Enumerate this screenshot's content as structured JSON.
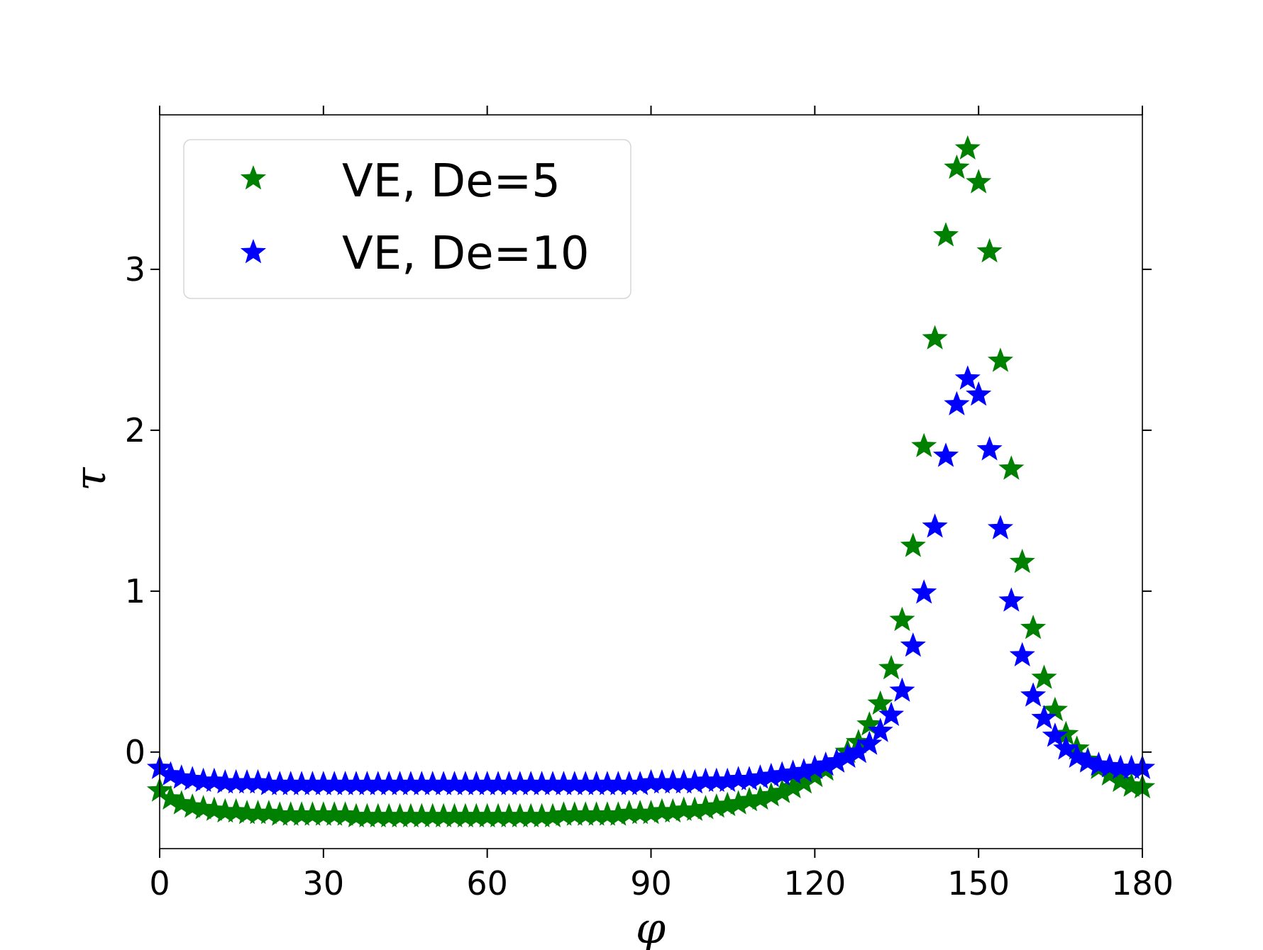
{
  "chart_data": {
    "type": "scatter",
    "title": "",
    "xlabel": "φ",
    "ylabel": "τ",
    "xlim": [
      0,
      180
    ],
    "ylim": [
      -0.6,
      3.96
    ],
    "xticks": [
      0,
      30,
      60,
      90,
      120,
      150,
      180
    ],
    "xtick_labels": [
      "0",
      "30",
      "60",
      "90",
      "120",
      "150",
      "180"
    ],
    "yticks": [
      0,
      1,
      2,
      3
    ],
    "ytick_labels": [
      "0",
      "1",
      "2",
      "3"
    ],
    "grid": false,
    "legend_position": "top-left",
    "series": [
      {
        "name": "VE, De=5",
        "color": "#008000",
        "marker": "star",
        "x": [
          0,
          2,
          4,
          6,
          8,
          10,
          12,
          14,
          16,
          18,
          20,
          22,
          24,
          26,
          28,
          30,
          32,
          34,
          36,
          38,
          40,
          42,
          44,
          46,
          48,
          50,
          52,
          54,
          56,
          58,
          60,
          62,
          64,
          66,
          68,
          70,
          72,
          74,
          76,
          78,
          80,
          82,
          84,
          86,
          88,
          90,
          92,
          94,
          96,
          98,
          100,
          102,
          104,
          106,
          108,
          110,
          112,
          114,
          116,
          118,
          120,
          122,
          124,
          126,
          128,
          130,
          132,
          134,
          136,
          138,
          140,
          142,
          144,
          146,
          148,
          150,
          152,
          154,
          156,
          158,
          160,
          162,
          164,
          166,
          168,
          170,
          172,
          174,
          176,
          178,
          180
        ],
        "y": [
          -0.24,
          -0.29,
          -0.32,
          -0.34,
          -0.35,
          -0.36,
          -0.37,
          -0.37,
          -0.38,
          -0.38,
          -0.38,
          -0.39,
          -0.39,
          -0.39,
          -0.39,
          -0.39,
          -0.39,
          -0.39,
          -0.4,
          -0.4,
          -0.4,
          -0.4,
          -0.4,
          -0.4,
          -0.4,
          -0.4,
          -0.4,
          -0.4,
          -0.4,
          -0.4,
          -0.4,
          -0.4,
          -0.4,
          -0.4,
          -0.4,
          -0.4,
          -0.4,
          -0.39,
          -0.39,
          -0.39,
          -0.39,
          -0.39,
          -0.39,
          -0.38,
          -0.38,
          -0.38,
          -0.37,
          -0.37,
          -0.36,
          -0.36,
          -0.35,
          -0.34,
          -0.33,
          -0.32,
          -0.3,
          -0.29,
          -0.27,
          -0.25,
          -0.22,
          -0.19,
          -0.15,
          -0.11,
          -0.06,
          0.0,
          0.06,
          0.17,
          0.3,
          0.52,
          0.82,
          1.28,
          1.9,
          2.57,
          3.21,
          3.63,
          3.75,
          3.54,
          3.11,
          2.43,
          1.76,
          1.18,
          0.77,
          0.46,
          0.26,
          0.11,
          0.02,
          -0.05,
          -0.1,
          -0.14,
          -0.18,
          -0.21,
          -0.22
        ]
      },
      {
        "name": "VE, De=10",
        "color": "#0000ff",
        "marker": "star",
        "x": [
          0,
          2,
          4,
          6,
          8,
          10,
          12,
          14,
          16,
          18,
          20,
          22,
          24,
          26,
          28,
          30,
          32,
          34,
          36,
          38,
          40,
          42,
          44,
          46,
          48,
          50,
          52,
          54,
          56,
          58,
          60,
          62,
          64,
          66,
          68,
          70,
          72,
          74,
          76,
          78,
          80,
          82,
          84,
          86,
          88,
          90,
          92,
          94,
          96,
          98,
          100,
          102,
          104,
          106,
          108,
          110,
          112,
          114,
          116,
          118,
          120,
          122,
          124,
          126,
          128,
          130,
          132,
          134,
          136,
          138,
          140,
          142,
          144,
          146,
          148,
          150,
          152,
          154,
          156,
          158,
          160,
          162,
          164,
          166,
          168,
          170,
          172,
          174,
          176,
          178,
          180
        ],
        "y": [
          -0.1,
          -0.14,
          -0.16,
          -0.17,
          -0.18,
          -0.18,
          -0.19,
          -0.19,
          -0.19,
          -0.19,
          -0.2,
          -0.2,
          -0.2,
          -0.2,
          -0.2,
          -0.2,
          -0.2,
          -0.2,
          -0.2,
          -0.2,
          -0.2,
          -0.2,
          -0.2,
          -0.2,
          -0.2,
          -0.2,
          -0.2,
          -0.2,
          -0.2,
          -0.2,
          -0.2,
          -0.2,
          -0.2,
          -0.2,
          -0.2,
          -0.2,
          -0.2,
          -0.2,
          -0.2,
          -0.2,
          -0.2,
          -0.2,
          -0.2,
          -0.2,
          -0.2,
          -0.19,
          -0.19,
          -0.19,
          -0.19,
          -0.19,
          -0.18,
          -0.18,
          -0.18,
          -0.17,
          -0.17,
          -0.16,
          -0.15,
          -0.14,
          -0.13,
          -0.12,
          -0.1,
          -0.08,
          -0.06,
          -0.03,
          0.0,
          0.05,
          0.13,
          0.23,
          0.38,
          0.66,
          0.99,
          1.4,
          1.84,
          2.16,
          2.32,
          2.22,
          1.88,
          1.39,
          0.94,
          0.6,
          0.35,
          0.21,
          0.1,
          0.02,
          -0.03,
          -0.06,
          -0.08,
          -0.09,
          -0.1,
          -0.1,
          -0.1
        ]
      }
    ]
  }
}
